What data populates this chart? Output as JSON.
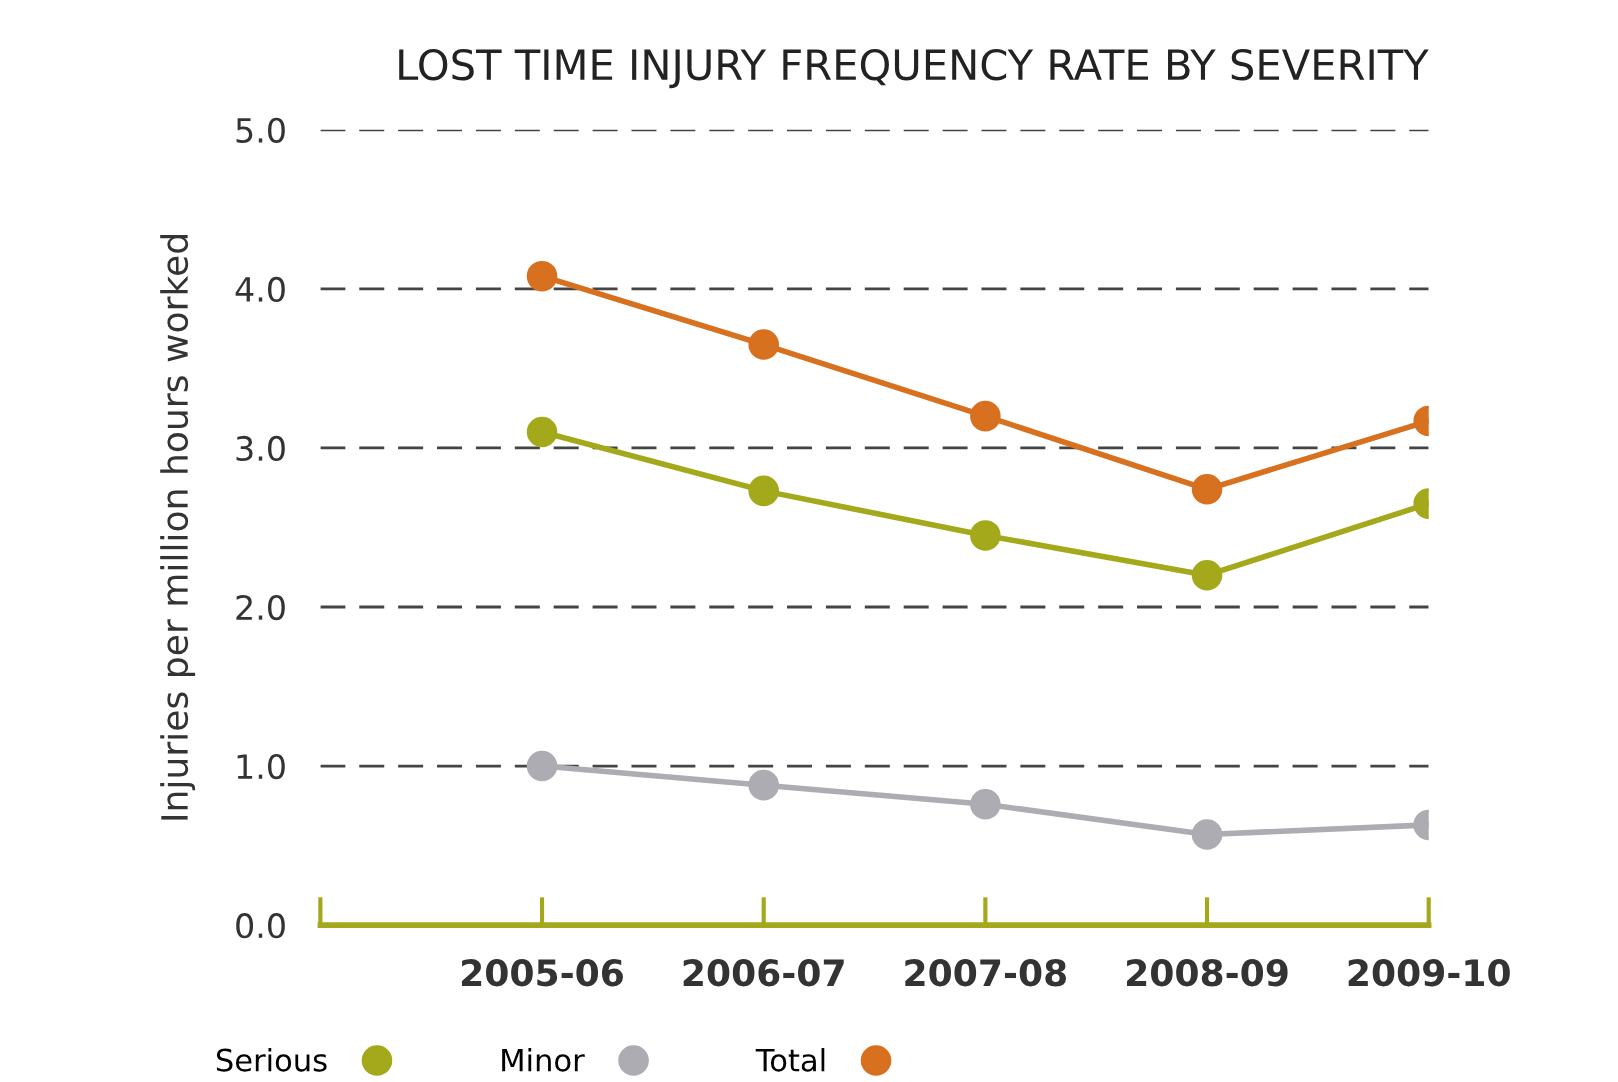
{
  "chart_data": {
    "type": "line",
    "title": "LOST TIME INJURY FREQUENCY RATE BY SEVERITY",
    "ylabel": "Injuries per million hours worked",
    "categories": [
      null,
      "2005-06",
      "2006-07",
      "2007-08",
      "2008-09",
      "2009-10"
    ],
    "series": [
      {
        "name": "Serious",
        "color": "#a4a91c",
        "values": [
          null,
          3.1,
          2.73,
          2.45,
          2.2,
          2.65
        ]
      },
      {
        "name": "Minor",
        "color": "#acacb2",
        "values": [
          null,
          1.0,
          0.88,
          0.76,
          0.57,
          0.63
        ]
      },
      {
        "name": "Total",
        "color": "#d7701f",
        "values": [
          null,
          4.08,
          3.65,
          3.2,
          2.74,
          3.17
        ]
      }
    ],
    "ylim": [
      0,
      5
    ],
    "yticks": [
      {
        "value": 0,
        "label": "0.0"
      },
      {
        "value": 1,
        "label": "1.0"
      },
      {
        "value": 2,
        "label": "2.0"
      },
      {
        "value": 3,
        "label": "3.0"
      },
      {
        "value": 4,
        "label": "4.0"
      },
      {
        "value": 5,
        "label": "5.0"
      }
    ],
    "grid": "y",
    "legend": "bottom",
    "marker": "circle",
    "line_style": "solid"
  }
}
